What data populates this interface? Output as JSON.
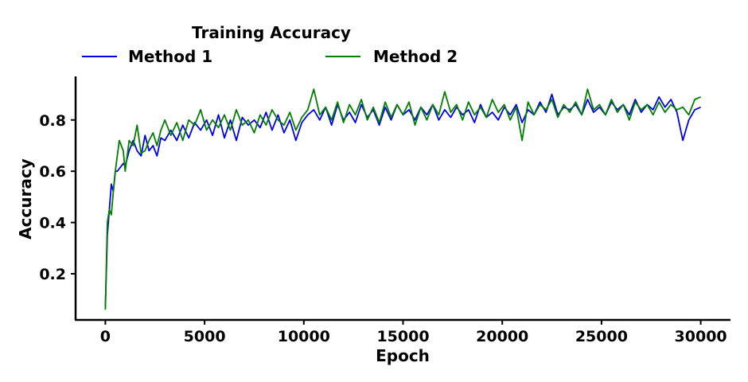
{
  "chart_data": {
    "type": "line",
    "legend": {
      "title": "Training Accuracy",
      "placement": "top-left, above plot, two columns"
    },
    "xlabel": "Epoch",
    "ylabel": "Accuracy",
    "xlim": [
      -1500,
      31500
    ],
    "ylim": [
      0.02,
      0.97
    ],
    "xticks": [
      0,
      5000,
      10000,
      15000,
      20000,
      25000,
      30000
    ],
    "xtick_labels": [
      "0",
      "5000",
      "10000",
      "15000",
      "20000",
      "25000",
      "30000"
    ],
    "yticks": [
      0.2,
      0.4,
      0.6,
      0.8
    ],
    "ytick_labels": [
      "0.2",
      "0.4",
      "0.6",
      "0.8"
    ],
    "grid": false,
    "series": [
      {
        "name": "Method 1",
        "color": "#0000ee",
        "x": [
          0,
          100,
          200,
          300,
          400,
          500,
          600,
          700,
          800,
          900,
          1000,
          1200,
          1400,
          1600,
          1800,
          2000,
          2200,
          2400,
          2600,
          2800,
          3000,
          3300,
          3600,
          3900,
          4200,
          4500,
          4800,
          5100,
          5400,
          5700,
          6000,
          6300,
          6600,
          6900,
          7200,
          7500,
          7800,
          8100,
          8400,
          8700,
          9000,
          9300,
          9600,
          9900,
          10200,
          10500,
          10800,
          11100,
          11400,
          11700,
          12000,
          12300,
          12600,
          12900,
          13200,
          13500,
          13800,
          14100,
          14400,
          14700,
          15000,
          15300,
          15600,
          15900,
          16200,
          16500,
          16800,
          17100,
          17400,
          17700,
          18000,
          18300,
          18600,
          18900,
          19200,
          19500,
          19800,
          20100,
          20400,
          20700,
          21000,
          21300,
          21600,
          21900,
          22200,
          22500,
          22800,
          23100,
          23400,
          23700,
          24000,
          24300,
          24600,
          24900,
          25200,
          25500,
          25800,
          26100,
          26400,
          26700,
          27000,
          27300,
          27600,
          27900,
          28200,
          28500,
          28800,
          29100,
          29400,
          29700,
          30000
        ],
        "values": [
          0.07,
          0.35,
          0.45,
          0.55,
          0.52,
          0.6,
          0.6,
          0.61,
          0.62,
          0.63,
          0.62,
          0.68,
          0.72,
          0.68,
          0.66,
          0.74,
          0.68,
          0.7,
          0.66,
          0.73,
          0.72,
          0.76,
          0.72,
          0.78,
          0.73,
          0.79,
          0.76,
          0.8,
          0.74,
          0.82,
          0.73,
          0.8,
          0.72,
          0.81,
          0.78,
          0.8,
          0.77,
          0.83,
          0.76,
          0.82,
          0.75,
          0.8,
          0.72,
          0.79,
          0.82,
          0.84,
          0.8,
          0.85,
          0.78,
          0.86,
          0.8,
          0.83,
          0.79,
          0.86,
          0.81,
          0.84,
          0.78,
          0.85,
          0.8,
          0.86,
          0.82,
          0.84,
          0.8,
          0.85,
          0.82,
          0.86,
          0.8,
          0.84,
          0.81,
          0.85,
          0.82,
          0.84,
          0.79,
          0.86,
          0.81,
          0.83,
          0.8,
          0.85,
          0.82,
          0.86,
          0.79,
          0.84,
          0.82,
          0.87,
          0.83,
          0.9,
          0.82,
          0.85,
          0.84,
          0.86,
          0.82,
          0.88,
          0.83,
          0.85,
          0.82,
          0.87,
          0.84,
          0.86,
          0.82,
          0.88,
          0.83,
          0.86,
          0.84,
          0.89,
          0.85,
          0.88,
          0.83,
          0.72,
          0.8,
          0.84,
          0.85
        ]
      },
      {
        "name": "Method 2",
        "color": "#007f00",
        "x": [
          0,
          100,
          200,
          300,
          400,
          500,
          600,
          700,
          800,
          900,
          1000,
          1200,
          1400,
          1600,
          1800,
          2000,
          2200,
          2400,
          2600,
          2800,
          3000,
          3300,
          3600,
          3900,
          4200,
          4500,
          4800,
          5100,
          5400,
          5700,
          6000,
          6300,
          6600,
          6900,
          7200,
          7500,
          7800,
          8100,
          8400,
          8700,
          9000,
          9300,
          9600,
          9900,
          10200,
          10500,
          10800,
          11100,
          11400,
          11700,
          12000,
          12300,
          12600,
          12900,
          13200,
          13500,
          13800,
          14100,
          14400,
          14700,
          15000,
          15300,
          15600,
          15900,
          16200,
          16500,
          16800,
          17100,
          17400,
          17700,
          18000,
          18300,
          18600,
          18900,
          19200,
          19500,
          19800,
          20100,
          20400,
          20700,
          21000,
          21300,
          21600,
          21900,
          22200,
          22500,
          22800,
          23100,
          23400,
          23700,
          24000,
          24300,
          24600,
          24900,
          25200,
          25500,
          25800,
          26100,
          26400,
          26700,
          27000,
          27300,
          27600,
          27900,
          28200,
          28500,
          28800,
          29100,
          29400,
          29700,
          30000
        ],
        "values": [
          0.06,
          0.4,
          0.45,
          0.43,
          0.52,
          0.6,
          0.66,
          0.72,
          0.7,
          0.68,
          0.6,
          0.72,
          0.7,
          0.78,
          0.67,
          0.68,
          0.72,
          0.75,
          0.7,
          0.76,
          0.8,
          0.74,
          0.79,
          0.72,
          0.8,
          0.78,
          0.84,
          0.76,
          0.8,
          0.77,
          0.82,
          0.76,
          0.84,
          0.78,
          0.8,
          0.75,
          0.82,
          0.78,
          0.84,
          0.8,
          0.78,
          0.83,
          0.76,
          0.81,
          0.84,
          0.92,
          0.82,
          0.85,
          0.8,
          0.87,
          0.79,
          0.86,
          0.82,
          0.88,
          0.8,
          0.85,
          0.79,
          0.87,
          0.81,
          0.86,
          0.82,
          0.87,
          0.78,
          0.85,
          0.8,
          0.86,
          0.82,
          0.91,
          0.83,
          0.86,
          0.8,
          0.87,
          0.82,
          0.85,
          0.81,
          0.88,
          0.83,
          0.86,
          0.8,
          0.85,
          0.72,
          0.87,
          0.82,
          0.86,
          0.84,
          0.88,
          0.81,
          0.86,
          0.83,
          0.87,
          0.82,
          0.92,
          0.84,
          0.86,
          0.82,
          0.88,
          0.83,
          0.86,
          0.8,
          0.87,
          0.84,
          0.86,
          0.82,
          0.87,
          0.83,
          0.86,
          0.84,
          0.85,
          0.82,
          0.88,
          0.89
        ]
      }
    ]
  }
}
